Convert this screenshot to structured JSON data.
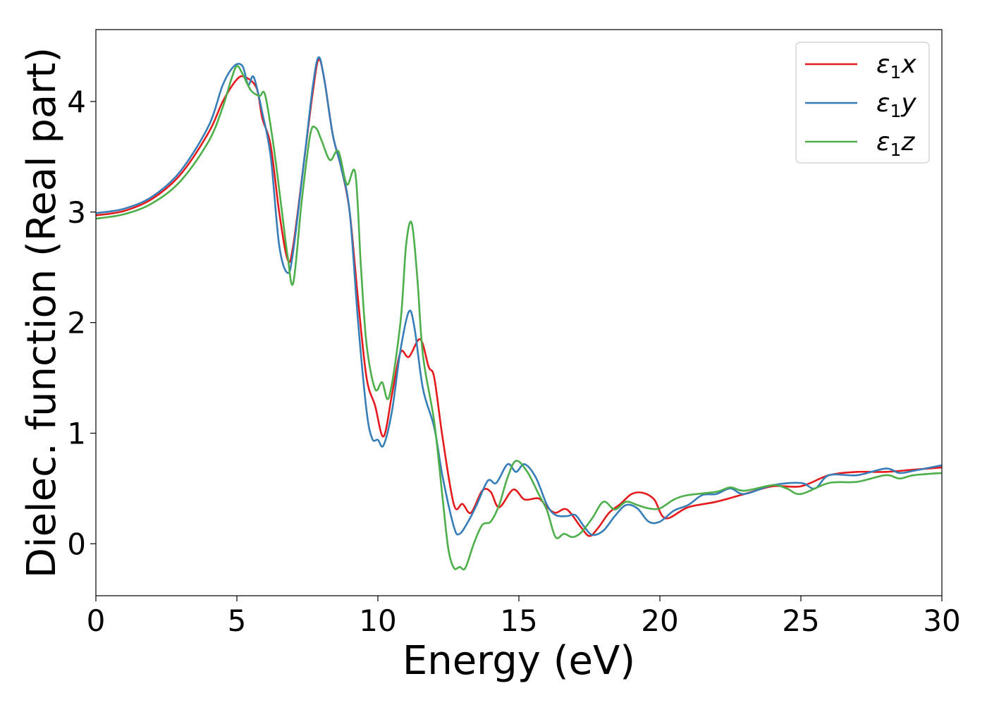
{
  "chart_data": {
    "type": "line",
    "title": "",
    "xlabel": "Energy (eV)",
    "ylabel": "Dielec. function (Real part)",
    "xlim": [
      0,
      30
    ],
    "ylim": [
      -0.47,
      4.65
    ],
    "xticks": [
      0,
      5,
      10,
      15,
      20,
      25,
      30
    ],
    "yticks": [
      0,
      1,
      2,
      3,
      4
    ],
    "grid": false,
    "legend_position": "top-right",
    "series": [
      {
        "name": "ε1x",
        "legend_main": "ε",
        "legend_sub": "1",
        "legend_suffix": "x",
        "color": "#e41a1c",
        "points": [
          [
            0,
            2.97
          ],
          [
            1,
            3.01
          ],
          [
            2,
            3.12
          ],
          [
            3,
            3.34
          ],
          [
            4,
            3.72
          ],
          [
            4.5,
            4.0
          ],
          [
            5,
            4.2
          ],
          [
            5.3,
            4.22
          ],
          [
            5.7,
            4.12
          ],
          [
            5.9,
            3.85
          ],
          [
            6.2,
            3.6
          ],
          [
            6.5,
            3.0
          ],
          [
            6.8,
            2.57
          ],
          [
            7.0,
            2.7
          ],
          [
            7.4,
            3.5
          ],
          [
            7.7,
            4.1
          ],
          [
            7.9,
            4.38
          ],
          [
            8.1,
            4.2
          ],
          [
            8.4,
            3.7
          ],
          [
            8.7,
            3.4
          ],
          [
            9.0,
            3.0
          ],
          [
            9.3,
            2.2
          ],
          [
            9.6,
            1.5
          ],
          [
            9.9,
            1.25
          ],
          [
            10.2,
            0.97
          ],
          [
            10.5,
            1.35
          ],
          [
            10.8,
            1.73
          ],
          [
            11.1,
            1.69
          ],
          [
            11.5,
            1.85
          ],
          [
            11.8,
            1.6
          ],
          [
            12.0,
            1.5
          ],
          [
            12.3,
            0.95
          ],
          [
            12.7,
            0.35
          ],
          [
            13.0,
            0.36
          ],
          [
            13.3,
            0.28
          ],
          [
            13.7,
            0.48
          ],
          [
            14.0,
            0.47
          ],
          [
            14.3,
            0.33
          ],
          [
            14.8,
            0.49
          ],
          [
            15.2,
            0.4
          ],
          [
            15.7,
            0.41
          ],
          [
            16.0,
            0.33
          ],
          [
            16.3,
            0.28
          ],
          [
            16.7,
            0.31
          ],
          [
            17.2,
            0.15
          ],
          [
            17.5,
            0.07
          ],
          [
            17.8,
            0.14
          ],
          [
            18.2,
            0.28
          ],
          [
            18.6,
            0.36
          ],
          [
            19.0,
            0.45
          ],
          [
            19.4,
            0.46
          ],
          [
            19.8,
            0.4
          ],
          [
            20.2,
            0.23
          ],
          [
            21,
            0.33
          ],
          [
            22,
            0.38
          ],
          [
            23,
            0.45
          ],
          [
            24,
            0.52
          ],
          [
            25,
            0.52
          ],
          [
            26,
            0.62
          ],
          [
            27,
            0.65
          ],
          [
            28,
            0.65
          ],
          [
            29,
            0.67
          ],
          [
            30,
            0.69
          ]
        ]
      },
      {
        "name": "ε1y",
        "legend_main": "ε",
        "legend_sub": "1",
        "legend_suffix": "y",
        "color": "#377eb8",
        "points": [
          [
            0,
            2.99
          ],
          [
            1,
            3.03
          ],
          [
            2,
            3.14
          ],
          [
            3,
            3.37
          ],
          [
            4,
            3.78
          ],
          [
            4.5,
            4.15
          ],
          [
            4.9,
            4.32
          ],
          [
            5.2,
            4.32
          ],
          [
            5.4,
            4.15
          ],
          [
            5.6,
            4.22
          ],
          [
            5.9,
            3.9
          ],
          [
            6.2,
            3.5
          ],
          [
            6.5,
            2.7
          ],
          [
            6.8,
            2.45
          ],
          [
            7.0,
            2.65
          ],
          [
            7.4,
            3.5
          ],
          [
            7.7,
            4.15
          ],
          [
            7.9,
            4.4
          ],
          [
            8.1,
            4.2
          ],
          [
            8.4,
            3.7
          ],
          [
            8.7,
            3.4
          ],
          [
            9.0,
            3.0
          ],
          [
            9.3,
            2.0
          ],
          [
            9.6,
            1.2
          ],
          [
            9.8,
            0.95
          ],
          [
            10.0,
            0.94
          ],
          [
            10.2,
            0.89
          ],
          [
            10.5,
            1.2
          ],
          [
            10.8,
            1.75
          ],
          [
            11.1,
            2.1
          ],
          [
            11.3,
            1.95
          ],
          [
            11.6,
            1.4
          ],
          [
            12.0,
            1.05
          ],
          [
            12.3,
            0.6
          ],
          [
            12.7,
            0.15
          ],
          [
            12.9,
            0.09
          ],
          [
            13.2,
            0.2
          ],
          [
            13.5,
            0.35
          ],
          [
            13.9,
            0.57
          ],
          [
            14.2,
            0.55
          ],
          [
            14.6,
            0.72
          ],
          [
            14.9,
            0.65
          ],
          [
            15.2,
            0.72
          ],
          [
            15.6,
            0.6
          ],
          [
            16.0,
            0.35
          ],
          [
            16.3,
            0.26
          ],
          [
            16.7,
            0.25
          ],
          [
            17.0,
            0.26
          ],
          [
            17.3,
            0.16
          ],
          [
            17.6,
            0.08
          ],
          [
            18.0,
            0.12
          ],
          [
            18.4,
            0.25
          ],
          [
            18.8,
            0.35
          ],
          [
            19.2,
            0.32
          ],
          [
            19.6,
            0.2
          ],
          [
            20.0,
            0.2
          ],
          [
            20.5,
            0.3
          ],
          [
            21,
            0.35
          ],
          [
            21.5,
            0.44
          ],
          [
            22,
            0.45
          ],
          [
            22.5,
            0.5
          ],
          [
            23,
            0.45
          ],
          [
            24,
            0.53
          ],
          [
            25,
            0.55
          ],
          [
            25.5,
            0.5
          ],
          [
            26,
            0.62
          ],
          [
            27,
            0.62
          ],
          [
            28,
            0.68
          ],
          [
            28.5,
            0.64
          ],
          [
            29,
            0.66
          ],
          [
            30,
            0.71
          ]
        ]
      },
      {
        "name": "ε1z",
        "legend_main": "ε",
        "legend_sub": "1",
        "legend_suffix": "z",
        "color": "#4daf4a",
        "points": [
          [
            0,
            2.94
          ],
          [
            1,
            2.98
          ],
          [
            2,
            3.08
          ],
          [
            3,
            3.28
          ],
          [
            4,
            3.64
          ],
          [
            4.5,
            3.95
          ],
          [
            4.8,
            4.2
          ],
          [
            5.0,
            4.32
          ],
          [
            5.2,
            4.25
          ],
          [
            5.5,
            4.1
          ],
          [
            5.8,
            4.05
          ],
          [
            6.0,
            4.06
          ],
          [
            6.3,
            3.6
          ],
          [
            6.6,
            3.0
          ],
          [
            6.8,
            2.6
          ],
          [
            7.0,
            2.36
          ],
          [
            7.3,
            3.1
          ],
          [
            7.6,
            3.7
          ],
          [
            7.8,
            3.76
          ],
          [
            8.0,
            3.65
          ],
          [
            8.3,
            3.47
          ],
          [
            8.6,
            3.55
          ],
          [
            8.9,
            3.25
          ],
          [
            9.2,
            3.35
          ],
          [
            9.4,
            2.5
          ],
          [
            9.6,
            1.8
          ],
          [
            9.9,
            1.4
          ],
          [
            10.15,
            1.46
          ],
          [
            10.4,
            1.33
          ],
          [
            10.8,
            2.0
          ],
          [
            11.0,
            2.7
          ],
          [
            11.2,
            2.9
          ],
          [
            11.4,
            2.4
          ],
          [
            11.6,
            1.7
          ],
          [
            12.0,
            1.1
          ],
          [
            12.3,
            0.4
          ],
          [
            12.5,
            -0.05
          ],
          [
            12.7,
            -0.22
          ],
          [
            12.9,
            -0.21
          ],
          [
            13.1,
            -0.22
          ],
          [
            13.4,
            0.0
          ],
          [
            13.7,
            0.17
          ],
          [
            14.0,
            0.2
          ],
          [
            14.3,
            0.35
          ],
          [
            14.6,
            0.6
          ],
          [
            14.9,
            0.75
          ],
          [
            15.3,
            0.65
          ],
          [
            15.7,
            0.45
          ],
          [
            16.0,
            0.3
          ],
          [
            16.3,
            0.06
          ],
          [
            16.6,
            0.09
          ],
          [
            16.9,
            0.06
          ],
          [
            17.2,
            0.1
          ],
          [
            17.6,
            0.23
          ],
          [
            18.0,
            0.38
          ],
          [
            18.4,
            0.31
          ],
          [
            18.8,
            0.38
          ],
          [
            19.2,
            0.35
          ],
          [
            19.6,
            0.32
          ],
          [
            20.0,
            0.32
          ],
          [
            20.5,
            0.4
          ],
          [
            21,
            0.44
          ],
          [
            22,
            0.47
          ],
          [
            22.5,
            0.51
          ],
          [
            23,
            0.48
          ],
          [
            24,
            0.53
          ],
          [
            24.5,
            0.5
          ],
          [
            25,
            0.45
          ],
          [
            26,
            0.55
          ],
          [
            27,
            0.56
          ],
          [
            28,
            0.62
          ],
          [
            28.5,
            0.59
          ],
          [
            29,
            0.62
          ],
          [
            30,
            0.64
          ]
        ]
      }
    ]
  }
}
